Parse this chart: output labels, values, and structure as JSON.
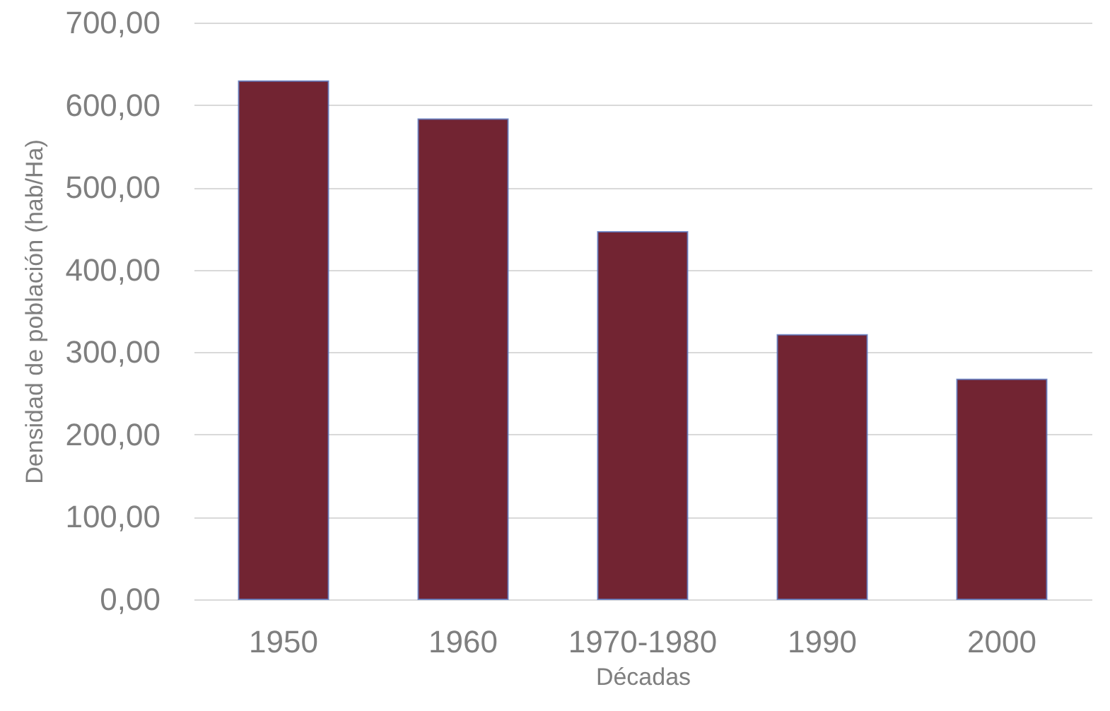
{
  "chart_data": {
    "type": "bar",
    "xlabel": "Décadas",
    "ylabel": "Densidad de población (hab/Ha)",
    "categories": [
      "1950",
      "1960",
      "1970-1980",
      "1990",
      "2000"
    ],
    "values": [
      629,
      583,
      446,
      321,
      267
    ],
    "color": "#722432",
    "ylim": [
      0,
      700
    ],
    "yticks": [
      {
        "value": 0,
        "label": "0,00"
      },
      {
        "value": 100,
        "label": "100,00"
      },
      {
        "value": 200,
        "label": "200,00"
      },
      {
        "value": 300,
        "label": "300,00"
      },
      {
        "value": 400,
        "label": "400,00"
      },
      {
        "value": 500,
        "label": "500,00"
      },
      {
        "value": 600,
        "label": "600,00"
      },
      {
        "value": 700,
        "label": "700,00"
      }
    ],
    "grid": "y"
  }
}
